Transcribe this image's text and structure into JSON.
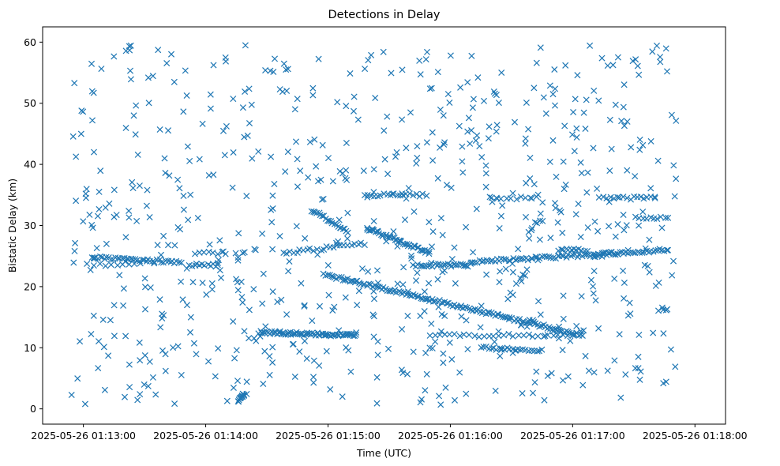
{
  "chart_data": {
    "type": "scatter",
    "title": "Detections in Delay",
    "xlabel": "Time (UTC)",
    "ylabel": "Bistatic Delay (km)",
    "marker": "x",
    "color": "#1f77b4",
    "grid": false,
    "x_unit": "seconds since 2025-05-26 01:13:00",
    "xlim": [
      -20,
      315
    ],
    "ylim": [
      -2.5,
      62.5
    ],
    "xticks": [
      0,
      60,
      120,
      180,
      240,
      300
    ],
    "xtick_labels": [
      "2025-05-26 01:13:00",
      "2025-05-26 01:14:00",
      "2025-05-26 01:15:00",
      "2025-05-26 01:16:00",
      "2025-05-26 01:17:00",
      "2025-05-26 01:18:00"
    ],
    "yticks": [
      0,
      10,
      20,
      30,
      40,
      50,
      60
    ],
    "ytick_labels": [
      "0",
      "10",
      "20",
      "30",
      "40",
      "50",
      "60"
    ],
    "x_extent": [
      -6,
      291
    ],
    "y_extent": [
      0.5,
      59.5
    ],
    "tracks": [
      {
        "name": "track-a",
        "x_start": 4,
        "x_end": 48,
        "y_start": 24.8,
        "y_end": 24.0,
        "n": 42
      },
      {
        "name": "track-b",
        "x_start": 52,
        "x_end": 66,
        "y_start": 23.5,
        "y_end": 23.5,
        "n": 12
      },
      {
        "name": "track-c",
        "x_start": 2,
        "x_end": 28,
        "y_start": 23.6,
        "y_end": 23.6,
        "n": 10
      },
      {
        "name": "track-d",
        "x_start": 76,
        "x_end": 79,
        "y_start": 1.2,
        "y_end": 2.5,
        "n": 12
      },
      {
        "name": "track-e",
        "x_start": 98,
        "x_end": 138,
        "y_start": 25.5,
        "y_end": 27.0,
        "n": 25
      },
      {
        "name": "track-f",
        "x_start": 112,
        "x_end": 130,
        "y_start": 32.5,
        "y_end": 29.0,
        "n": 22
      },
      {
        "name": "track-g",
        "x_start": 139,
        "x_end": 170,
        "y_start": 29.5,
        "y_end": 25.5,
        "n": 45
      },
      {
        "name": "track-h",
        "x_start": 138,
        "x_end": 168,
        "y_start": 35.0,
        "y_end": 35.0,
        "n": 20
      },
      {
        "name": "track-i",
        "x_start": 162,
        "x_end": 190,
        "y_start": 23.5,
        "y_end": 23.5,
        "n": 28
      },
      {
        "name": "track-j",
        "x_start": 190,
        "x_end": 287,
        "y_start": 24.0,
        "y_end": 26.0,
        "n": 90
      },
      {
        "name": "track-k",
        "x_start": 86,
        "x_end": 134,
        "y_start": 12.5,
        "y_end": 12.0,
        "n": 70
      },
      {
        "name": "track-l",
        "x_start": 118,
        "x_end": 245,
        "y_start": 22.0,
        "y_end": 12.0,
        "n": 140
      },
      {
        "name": "track-m",
        "x_start": 170,
        "x_end": 240,
        "y_start": 12.0,
        "y_end": 12.0,
        "n": 30
      },
      {
        "name": "track-n",
        "x_start": 195,
        "x_end": 225,
        "y_start": 10.0,
        "y_end": 9.5,
        "n": 24
      },
      {
        "name": "track-o",
        "x_start": 200,
        "x_end": 222,
        "y_start": 34.5,
        "y_end": 34.5,
        "n": 10
      },
      {
        "name": "track-p",
        "x_start": 255,
        "x_end": 280,
        "y_start": 34.5,
        "y_end": 34.5,
        "n": 16
      },
      {
        "name": "track-q",
        "x_start": 271,
        "x_end": 287,
        "y_start": 31.2,
        "y_end": 31.2,
        "n": 10
      },
      {
        "name": "track-r",
        "x_start": 233,
        "x_end": 247,
        "y_start": 26.0,
        "y_end": 26.0,
        "n": 12
      },
      {
        "name": "track-s",
        "x_start": 250,
        "x_end": 262,
        "y_start": 25.0,
        "y_end": 25.5,
        "n": 10
      },
      {
        "name": "track-t",
        "x_start": 55,
        "x_end": 70,
        "y_start": 25.5,
        "y_end": 25.5,
        "n": 8
      }
    ],
    "clutter_points": 720,
    "clutter_seed": 9001
  }
}
